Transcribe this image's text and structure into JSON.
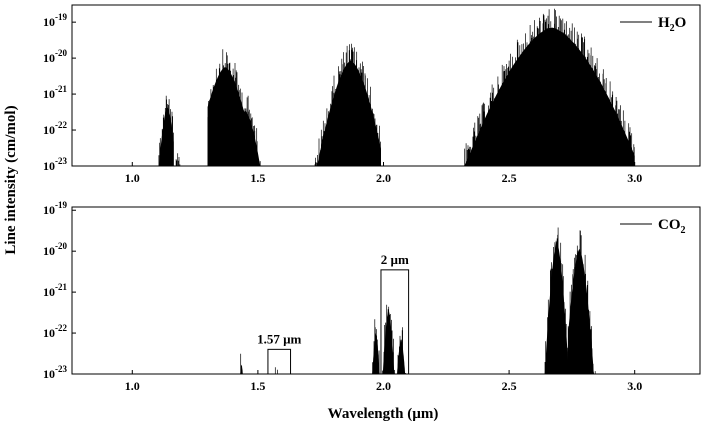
{
  "chart_data": {
    "type": "area",
    "xlabel": "Wavelength (µm)",
    "ylabel": "Line intensity (cm/mol)",
    "shared_x": {
      "xlim": [
        0.76,
        3.26
      ],
      "xticks": [
        1.0,
        1.5,
        2.0,
        2.5,
        3.0
      ],
      "xtick_labels": [
        "1.0",
        "1.5",
        "2.0",
        "2.5",
        "3.0"
      ]
    },
    "panels": [
      {
        "id": "h2o",
        "legend": {
          "prefix": "H",
          "subscript": "2",
          "suffix": "O",
          "placement": "top-right"
        },
        "yscale": "log",
        "ylim": [
          1e-23,
          3e-19
        ],
        "yticks": [
          {
            "base": "10",
            "exp": "-23"
          },
          {
            "base": "10",
            "exp": "-22"
          },
          {
            "base": "10",
            "exp": "-21"
          },
          {
            "base": "10",
            "exp": "-20"
          },
          {
            "base": "10",
            "exp": "-19"
          }
        ],
        "bands": [
          {
            "lo": 1.09,
            "hi": 1.165,
            "center": 1.14,
            "peak": 1.5e-21
          },
          {
            "lo": 1.165,
            "hi": 1.205,
            "center": 1.19,
            "peak": 3e-23
          },
          {
            "lo": 1.3,
            "hi": 1.55,
            "center": 1.37,
            "peak": 2e-20,
            "shoulder_center": 1.45,
            "shoulder_peak": 1.2e-21
          },
          {
            "lo": 1.72,
            "hi": 1.99,
            "center": 1.87,
            "peak": 3e-20
          },
          {
            "lo": 2.32,
            "hi": 3.0,
            "center": 2.67,
            "peak": 2.5e-19
          }
        ],
        "annotations": []
      },
      {
        "id": "co2",
        "legend": {
          "prefix": "CO",
          "subscript": "2",
          "suffix": "",
          "placement": "top-right"
        },
        "yscale": "log",
        "ylim": [
          1e-23,
          1.2e-19
        ],
        "yticks": [
          {
            "base": "10",
            "exp": "-23"
          },
          {
            "base": "10",
            "exp": "-22"
          },
          {
            "base": "10",
            "exp": "-21"
          },
          {
            "base": "10",
            "exp": "-20"
          },
          {
            "base": "10",
            "exp": "-19"
          }
        ],
        "bands": [
          {
            "lo": 1.425,
            "hi": 1.445,
            "center": 1.435,
            "peak": 6e-23
          },
          {
            "lo": 1.565,
            "hi": 1.58,
            "center": 1.572,
            "peak": 2e-23
          },
          {
            "lo": 1.595,
            "hi": 1.61,
            "center": 1.602,
            "peak": 1.8e-23
          },
          {
            "lo": 1.955,
            "hi": 1.99,
            "center": 1.97,
            "peak": 3.5e-22
          },
          {
            "lo": 1.995,
            "hi": 2.045,
            "center": 2.02,
            "peak": 1.3e-21
          },
          {
            "lo": 2.05,
            "hi": 2.09,
            "center": 2.07,
            "peak": 2.5e-22
          },
          {
            "lo": 2.64,
            "hi": 2.735,
            "center": 2.69,
            "peak": 6e-20
          },
          {
            "lo": 2.735,
            "hi": 2.85,
            "center": 2.78,
            "peak": 4e-20
          }
        ],
        "annotations": [
          {
            "label": "1.57 µm",
            "x0": 1.54,
            "x1": 1.63,
            "ytop": 4e-23
          },
          {
            "label": "2 µm",
            "x0": 1.99,
            "x1": 2.1,
            "ytop": 3.5e-21
          }
        ]
      }
    ]
  }
}
